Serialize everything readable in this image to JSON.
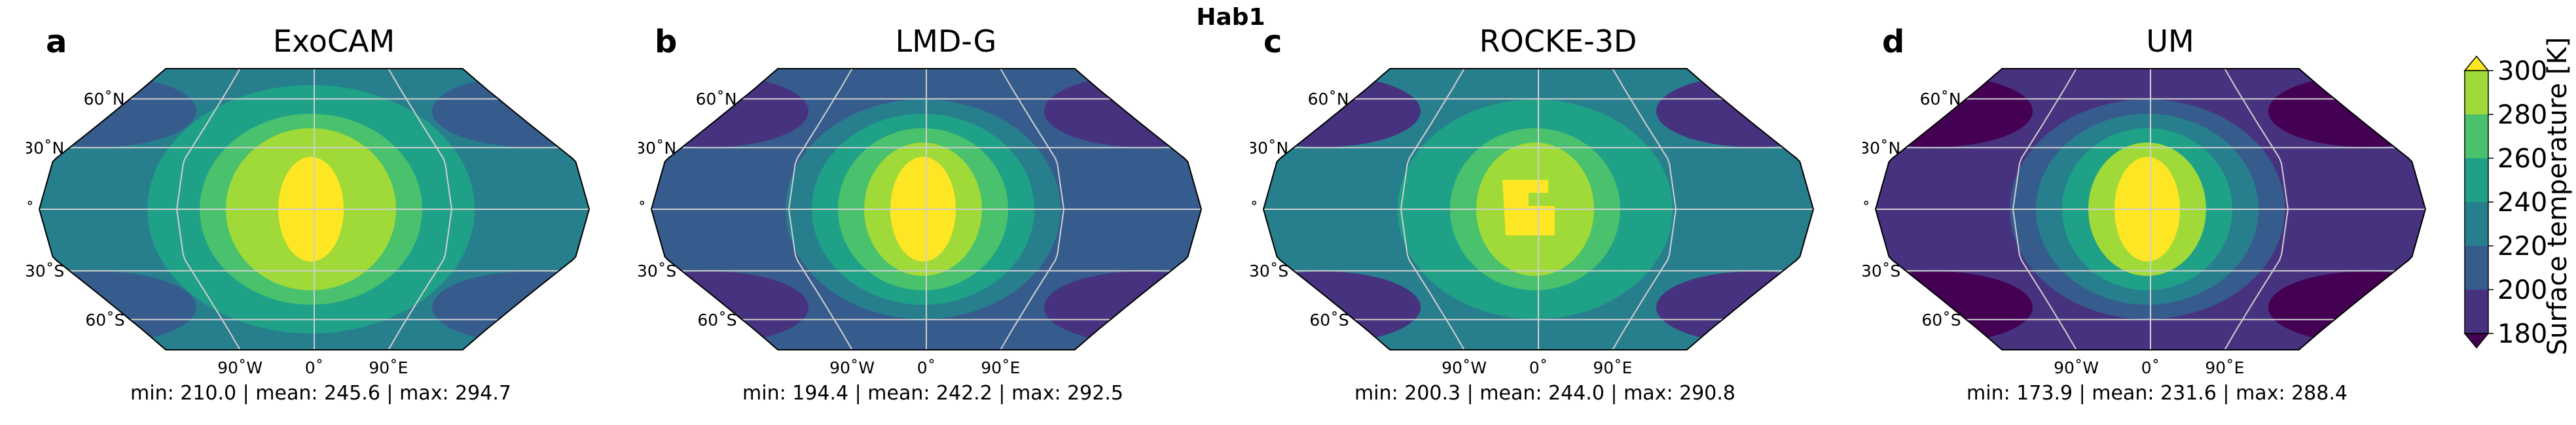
{
  "suptitle": "Hab1",
  "chart_data": [
    {
      "type": "heatmap",
      "panel": "a",
      "title": "ExoCAM",
      "stats": "min: 210.0 | mean: 245.6 | max: 294.7",
      "min": 210.0,
      "mean": 245.6,
      "max": 294.7,
      "center_shape": "smooth",
      "lat_ticks": [
        "60˚N",
        "30˚N",
        "0˚",
        "30˚S",
        "60˚S"
      ],
      "lon_ticks": [
        "90˚W",
        "0˚",
        "90˚E"
      ]
    },
    {
      "type": "heatmap",
      "panel": "b",
      "title": "LMD-G",
      "stats": "min: 194.4 | mean: 242.2 | max: 292.5",
      "min": 194.4,
      "mean": 242.2,
      "max": 292.5,
      "center_shape": "smooth",
      "lat_ticks": [
        "60˚N",
        "30˚N",
        "0˚",
        "30˚S",
        "60˚S"
      ],
      "lon_ticks": [
        "90˚W",
        "0˚",
        "90˚E"
      ]
    },
    {
      "type": "heatmap",
      "panel": "c",
      "title": "ROCKE-3D",
      "stats": "min: 200.3 | mean: 244.0 | max: 290.8",
      "min": 200.3,
      "mean": 244.0,
      "max": 290.8,
      "center_shape": "blocky",
      "lat_ticks": [
        "60˚N",
        "30˚N",
        "0˚",
        "30˚S",
        "60˚S"
      ],
      "lon_ticks": [
        "90˚W",
        "0˚",
        "90˚E"
      ]
    },
    {
      "type": "heatmap",
      "panel": "d",
      "title": "UM",
      "stats": "min: 173.9 | mean: 231.6 | max: 288.4",
      "min": 173.9,
      "mean": 231.6,
      "max": 288.4,
      "center_shape": "smooth",
      "lat_ticks": [
        "60˚N",
        "30˚N",
        "0˚",
        "30˚S",
        "60˚S"
      ],
      "lon_ticks": [
        "90˚W",
        "0˚",
        "90˚E"
      ]
    }
  ],
  "colorbar": {
    "label": "Surface temperature [K]",
    "ticks": [
      "300",
      "280",
      "260",
      "240",
      "220",
      "200",
      "180"
    ],
    "min": 180,
    "max": 300,
    "extend": "both",
    "colormap": "viridis",
    "levels_colors": [
      "#440154",
      "#46327e",
      "#365c8d",
      "#277f8e",
      "#1fa187",
      "#4ac16d",
      "#a0da39",
      "#fde725"
    ]
  }
}
